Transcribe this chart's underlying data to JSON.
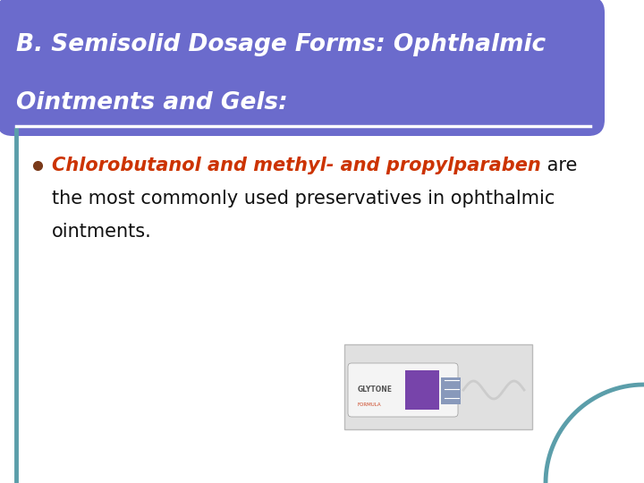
{
  "title_line1": "B. Semisolid Dosage Forms: Ophthalmic",
  "title_line2": "Ointments and Gels:",
  "title_bg_color": "#6b6bcc",
  "title_text_color": "#ffffff",
  "body_bg_color": "#ffffff",
  "border_color": "#5b9eaa",
  "bullet_color": "#7a3a1a",
  "highlighted_text": "Chlorobutanol and methyl- and propylparaben",
  "highlighted_color": "#cc3300",
  "body_text_color": "#111111",
  "divider_color": "#ffffff",
  "slide_bg": "#ffffff",
  "title_font_size": 19,
  "body_font_size": 15
}
